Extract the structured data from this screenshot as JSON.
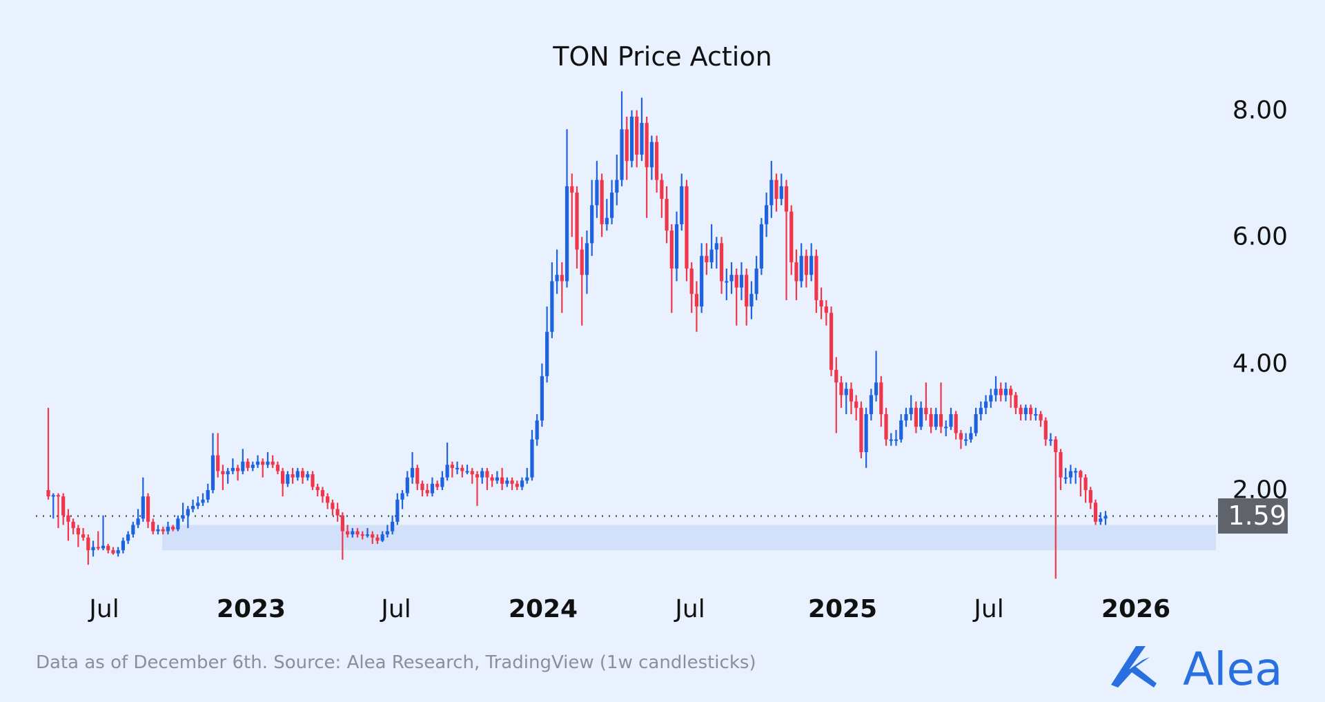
{
  "chart_data": {
    "type": "candlestick",
    "title": "TON Price Action",
    "interval": "1w",
    "y_ticks": [
      "8.00",
      "6.00",
      "4.00",
      "2.00"
    ],
    "y_tick_values": [
      8,
      6,
      4,
      2
    ],
    "ylim": [
      0.5,
      8.4
    ],
    "x_ticks": [
      "Jul",
      "2023",
      "Jul",
      "2024",
      "Jul",
      "2025",
      "Jul",
      "2026"
    ],
    "last_price": "1.59",
    "last_price_value": 1.59,
    "support_zone": [
      1.05,
      1.45
    ],
    "grid": false,
    "colors": {
      "up": "#1f62e0",
      "down": "#f0364a",
      "zone": "#d2e0fa",
      "background": "#e8f1fd",
      "price_tag": "#5f636b"
    },
    "candles": [
      [
        2.0,
        3.3,
        1.85,
        1.9
      ],
      [
        1.9,
        1.95,
        1.55,
        1.92
      ],
      [
        1.92,
        1.95,
        1.4,
        1.9
      ],
      [
        1.9,
        1.95,
        1.45,
        1.6
      ],
      [
        1.6,
        1.7,
        1.2,
        1.5
      ],
      [
        1.5,
        1.55,
        1.3,
        1.4
      ],
      [
        1.4,
        1.45,
        1.1,
        1.3
      ],
      [
        1.3,
        1.4,
        1.2,
        1.25
      ],
      [
        1.25,
        1.3,
        0.82,
        1.05
      ],
      [
        1.05,
        1.2,
        0.95,
        1.1
      ],
      [
        1.1,
        1.35,
        1.05,
        1.08
      ],
      [
        1.08,
        1.6,
        1.05,
        1.12
      ],
      [
        1.12,
        1.15,
        1.0,
        1.05
      ],
      [
        1.05,
        1.1,
        0.98,
        1.0
      ],
      [
        1.0,
        1.1,
        0.95,
        1.05
      ],
      [
        1.05,
        1.25,
        1.0,
        1.2
      ],
      [
        1.2,
        1.35,
        1.15,
        1.3
      ],
      [
        1.3,
        1.5,
        1.25,
        1.45
      ],
      [
        1.45,
        1.7,
        1.4,
        1.55
      ],
      [
        1.55,
        2.2,
        1.5,
        1.9
      ],
      [
        1.9,
        1.95,
        1.4,
        1.5
      ],
      [
        1.5,
        1.55,
        1.3,
        1.35
      ],
      [
        1.35,
        1.45,
        1.3,
        1.38
      ],
      [
        1.38,
        1.42,
        1.3,
        1.35
      ],
      [
        1.35,
        1.5,
        1.3,
        1.42
      ],
      [
        1.42,
        1.45,
        1.35,
        1.38
      ],
      [
        1.38,
        1.6,
        1.35,
        1.55
      ],
      [
        1.55,
        1.8,
        1.5,
        1.6
      ],
      [
        1.6,
        1.75,
        1.4,
        1.7
      ],
      [
        1.7,
        1.85,
        1.65,
        1.75
      ],
      [
        1.75,
        1.9,
        1.7,
        1.8
      ],
      [
        1.8,
        1.95,
        1.75,
        1.85
      ],
      [
        1.85,
        2.1,
        1.8,
        2.0
      ],
      [
        2.0,
        2.9,
        1.95,
        2.55
      ],
      [
        2.55,
        2.9,
        2.2,
        2.3
      ],
      [
        2.3,
        2.4,
        2.0,
        2.25
      ],
      [
        2.25,
        2.35,
        2.1,
        2.3
      ],
      [
        2.3,
        2.5,
        2.25,
        2.35
      ],
      [
        2.35,
        2.4,
        2.15,
        2.3
      ],
      [
        2.3,
        2.65,
        2.25,
        2.45
      ],
      [
        2.45,
        2.5,
        2.3,
        2.35
      ],
      [
        2.35,
        2.45,
        2.3,
        2.4
      ],
      [
        2.4,
        2.55,
        2.35,
        2.45
      ],
      [
        2.45,
        2.5,
        2.2,
        2.4
      ],
      [
        2.4,
        2.6,
        2.35,
        2.45
      ],
      [
        2.45,
        2.55,
        2.35,
        2.4
      ],
      [
        2.4,
        2.45,
        2.25,
        2.3
      ],
      [
        2.3,
        2.35,
        1.9,
        2.1
      ],
      [
        2.1,
        2.3,
        2.05,
        2.25
      ],
      [
        2.25,
        2.35,
        2.1,
        2.2
      ],
      [
        2.2,
        2.35,
        2.15,
        2.3
      ],
      [
        2.3,
        2.35,
        2.1,
        2.2
      ],
      [
        2.2,
        2.3,
        2.15,
        2.25
      ],
      [
        2.25,
        2.3,
        2.0,
        2.05
      ],
      [
        2.05,
        2.1,
        1.9,
        2.0
      ],
      [
        2.0,
        2.05,
        1.8,
        1.9
      ],
      [
        1.9,
        1.95,
        1.7,
        1.8
      ],
      [
        1.8,
        1.85,
        1.6,
        1.7
      ],
      [
        1.7,
        1.8,
        1.5,
        1.6
      ],
      [
        1.6,
        1.65,
        0.9,
        1.35
      ],
      [
        1.35,
        1.45,
        1.25,
        1.3
      ],
      [
        1.3,
        1.4,
        1.25,
        1.35
      ],
      [
        1.35,
        1.4,
        1.25,
        1.3
      ],
      [
        1.3,
        1.35,
        1.22,
        1.28
      ],
      [
        1.28,
        1.4,
        1.25,
        1.3
      ],
      [
        1.3,
        1.35,
        1.15,
        1.25
      ],
      [
        1.25,
        1.3,
        1.15,
        1.2
      ],
      [
        1.2,
        1.35,
        1.18,
        1.3
      ],
      [
        1.3,
        1.45,
        1.25,
        1.35
      ],
      [
        1.35,
        1.6,
        1.3,
        1.5
      ],
      [
        1.5,
        1.95,
        1.45,
        1.85
      ],
      [
        1.85,
        2.0,
        1.7,
        1.95
      ],
      [
        1.95,
        2.3,
        1.9,
        2.2
      ],
      [
        2.2,
        2.6,
        2.1,
        2.35
      ],
      [
        2.35,
        2.4,
        2.0,
        2.1
      ],
      [
        2.1,
        2.15,
        1.9,
        2.0
      ],
      [
        2.0,
        2.1,
        1.9,
        1.95
      ],
      [
        1.95,
        2.2,
        1.9,
        2.1
      ],
      [
        2.1,
        2.15,
        2.0,
        2.05
      ],
      [
        2.05,
        2.3,
        2.0,
        2.2
      ],
      [
        2.2,
        2.75,
        2.15,
        2.4
      ],
      [
        2.4,
        2.45,
        2.2,
        2.35
      ],
      [
        2.35,
        2.45,
        2.25,
        2.35
      ],
      [
        2.35,
        2.4,
        2.2,
        2.3
      ],
      [
        2.3,
        2.4,
        2.25,
        2.3
      ],
      [
        2.3,
        2.35,
        2.1,
        2.25
      ],
      [
        2.25,
        2.3,
        1.75,
        2.2
      ],
      [
        2.2,
        2.35,
        2.1,
        2.3
      ],
      [
        2.3,
        2.35,
        2.0,
        2.2
      ],
      [
        2.2,
        2.25,
        2.05,
        2.15
      ],
      [
        2.15,
        2.3,
        2.1,
        2.2
      ],
      [
        2.2,
        2.35,
        2.0,
        2.1
      ],
      [
        2.1,
        2.2,
        2.05,
        2.15
      ],
      [
        2.15,
        2.2,
        2.0,
        2.1
      ],
      [
        2.1,
        2.15,
        2.0,
        2.05
      ],
      [
        2.05,
        2.2,
        2.0,
        2.15
      ],
      [
        2.15,
        2.35,
        2.1,
        2.2
      ],
      [
        2.2,
        2.95,
        2.15,
        2.8
      ],
      [
        2.8,
        3.2,
        2.7,
        3.1
      ],
      [
        3.1,
        4.0,
        3.0,
        3.8
      ],
      [
        3.8,
        4.9,
        3.7,
        4.5
      ],
      [
        4.5,
        5.6,
        4.4,
        5.3
      ],
      [
        5.3,
        5.8,
        5.1,
        5.4
      ],
      [
        5.4,
        5.6,
        4.8,
        5.3
      ],
      [
        5.3,
        7.7,
        5.2,
        6.8
      ],
      [
        6.8,
        7.0,
        6.0,
        6.7
      ],
      [
        6.7,
        6.8,
        5.5,
        5.8
      ],
      [
        5.8,
        6.0,
        4.6,
        5.4
      ],
      [
        5.4,
        6.1,
        5.1,
        5.9
      ],
      [
        5.9,
        6.9,
        5.7,
        6.5
      ],
      [
        6.5,
        7.2,
        6.3,
        6.9
      ],
      [
        6.9,
        7.0,
        6.0,
        6.2
      ],
      [
        6.2,
        6.6,
        6.1,
        6.3
      ],
      [
        6.3,
        6.9,
        6.2,
        6.7
      ],
      [
        6.7,
        7.3,
        6.5,
        6.9
      ],
      [
        6.9,
        8.3,
        6.8,
        7.7
      ],
      [
        7.7,
        7.9,
        6.9,
        7.2
      ],
      [
        7.2,
        8.0,
        7.1,
        7.9
      ],
      [
        7.9,
        8.0,
        7.1,
        7.3
      ],
      [
        7.3,
        8.2,
        7.2,
        7.8
      ],
      [
        7.8,
        7.9,
        6.3,
        7.1
      ],
      [
        7.1,
        7.6,
        6.9,
        7.5
      ],
      [
        7.5,
        7.6,
        6.7,
        6.9
      ],
      [
        6.9,
        7.0,
        6.3,
        6.6
      ],
      [
        6.6,
        6.8,
        5.9,
        6.1
      ],
      [
        6.1,
        6.2,
        4.8,
        5.5
      ],
      [
        5.5,
        6.4,
        5.3,
        6.2
      ],
      [
        6.2,
        7.0,
        6.1,
        6.8
      ],
      [
        6.8,
        6.9,
        5.3,
        5.5
      ],
      [
        5.5,
        5.6,
        4.8,
        5.1
      ],
      [
        5.1,
        5.3,
        4.5,
        4.9
      ],
      [
        4.9,
        5.9,
        4.8,
        5.7
      ],
      [
        5.7,
        5.9,
        5.4,
        5.6
      ],
      [
        5.6,
        6.2,
        5.5,
        5.8
      ],
      [
        5.8,
        6.0,
        5.5,
        5.9
      ],
      [
        5.9,
        6.0,
        5.1,
        5.3
      ],
      [
        5.3,
        5.5,
        5.0,
        5.3
      ],
      [
        5.3,
        5.6,
        5.1,
        5.4
      ],
      [
        5.4,
        5.5,
        4.6,
        5.2
      ],
      [
        5.2,
        5.6,
        5.0,
        5.4
      ],
      [
        5.4,
        5.5,
        4.6,
        4.9
      ],
      [
        4.9,
        5.3,
        4.7,
        5.1
      ],
      [
        5.1,
        5.7,
        5.0,
        5.5
      ],
      [
        5.5,
        6.3,
        5.4,
        6.2
      ],
      [
        6.2,
        6.7,
        6.0,
        6.5
      ],
      [
        6.5,
        7.2,
        6.3,
        6.9
      ],
      [
        6.9,
        7.0,
        6.4,
        6.6
      ],
      [
        6.6,
        7.0,
        6.5,
        6.8
      ],
      [
        6.8,
        6.9,
        5.0,
        6.4
      ],
      [
        6.4,
        6.5,
        5.4,
        5.6
      ],
      [
        5.6,
        5.8,
        5.0,
        5.3
      ],
      [
        5.3,
        5.9,
        5.2,
        5.7
      ],
      [
        5.7,
        5.8,
        5.2,
        5.4
      ],
      [
        5.4,
        5.9,
        5.3,
        5.7
      ],
      [
        5.7,
        5.8,
        4.8,
        5.0
      ],
      [
        5.0,
        5.2,
        4.7,
        4.9
      ],
      [
        4.9,
        5.0,
        4.6,
        4.8
      ],
      [
        4.8,
        4.9,
        3.8,
        3.9
      ],
      [
        3.9,
        4.1,
        2.9,
        3.7
      ],
      [
        3.7,
        3.8,
        3.3,
        3.5
      ],
      [
        3.5,
        3.7,
        3.2,
        3.6
      ],
      [
        3.6,
        3.7,
        3.2,
        3.4
      ],
      [
        3.4,
        3.5,
        3.1,
        3.3
      ],
      [
        3.3,
        3.4,
        2.5,
        2.6
      ],
      [
        2.6,
        3.3,
        2.35,
        3.2
      ],
      [
        3.2,
        3.6,
        3.1,
        3.5
      ],
      [
        3.5,
        4.2,
        3.4,
        3.7
      ],
      [
        3.7,
        3.8,
        3.0,
        3.2
      ],
      [
        3.2,
        3.3,
        2.7,
        2.8
      ],
      [
        2.8,
        2.9,
        2.7,
        2.8
      ],
      [
        2.8,
        2.95,
        2.7,
        2.8
      ],
      [
        2.8,
        3.2,
        2.75,
        3.1
      ],
      [
        3.1,
        3.3,
        3.0,
        3.2
      ],
      [
        3.2,
        3.5,
        3.1,
        3.3
      ],
      [
        3.3,
        3.4,
        2.9,
        3.0
      ],
      [
        3.0,
        3.4,
        2.95,
        3.3
      ],
      [
        3.3,
        3.7,
        3.1,
        3.2
      ],
      [
        3.2,
        3.3,
        2.9,
        3.0
      ],
      [
        3.0,
        3.3,
        2.95,
        3.2
      ],
      [
        3.2,
        3.7,
        2.9,
        3.0
      ],
      [
        3.0,
        3.1,
        2.85,
        3.0
      ],
      [
        3.0,
        3.3,
        2.95,
        3.2
      ],
      [
        3.2,
        3.25,
        2.8,
        2.9
      ],
      [
        2.9,
        2.95,
        2.65,
        2.8
      ],
      [
        2.8,
        2.9,
        2.7,
        2.8
      ],
      [
        2.8,
        3.0,
        2.75,
        2.9
      ],
      [
        2.9,
        3.3,
        2.85,
        3.2
      ],
      [
        3.2,
        3.4,
        3.1,
        3.3
      ],
      [
        3.3,
        3.5,
        3.2,
        3.4
      ],
      [
        3.4,
        3.6,
        3.3,
        3.5
      ],
      [
        3.5,
        3.8,
        3.4,
        3.6
      ],
      [
        3.6,
        3.7,
        3.4,
        3.5
      ],
      [
        3.5,
        3.7,
        3.4,
        3.6
      ],
      [
        3.6,
        3.65,
        3.3,
        3.5
      ],
      [
        3.5,
        3.55,
        3.2,
        3.3
      ],
      [
        3.3,
        3.35,
        3.1,
        3.2
      ],
      [
        3.2,
        3.35,
        3.1,
        3.3
      ],
      [
        3.3,
        3.35,
        3.1,
        3.2
      ],
      [
        3.2,
        3.3,
        3.1,
        3.2
      ],
      [
        3.2,
        3.25,
        3.0,
        3.1
      ],
      [
        3.1,
        3.15,
        2.7,
        2.8
      ],
      [
        2.8,
        2.9,
        2.7,
        2.8
      ],
      [
        2.8,
        2.85,
        0.6,
        2.6
      ],
      [
        2.6,
        2.65,
        2.0,
        2.2
      ],
      [
        2.2,
        2.35,
        2.1,
        2.2
      ],
      [
        2.2,
        2.4,
        2.1,
        2.3
      ],
      [
        2.3,
        2.35,
        2.1,
        2.3
      ],
      [
        2.3,
        2.32,
        1.9,
        2.2
      ],
      [
        2.2,
        2.25,
        1.8,
        2.0
      ],
      [
        2.0,
        2.05,
        1.7,
        1.8
      ],
      [
        1.8,
        1.85,
        1.45,
        1.5
      ],
      [
        1.5,
        1.65,
        1.45,
        1.55
      ],
      [
        1.55,
        1.67,
        1.45,
        1.59
      ]
    ]
  },
  "footer": {
    "source": "Data as of December 6th. Source: Alea Research, TradingView (1w candlesticks)"
  },
  "logo": {
    "text": "Alea",
    "color": "#2a6fe0"
  }
}
